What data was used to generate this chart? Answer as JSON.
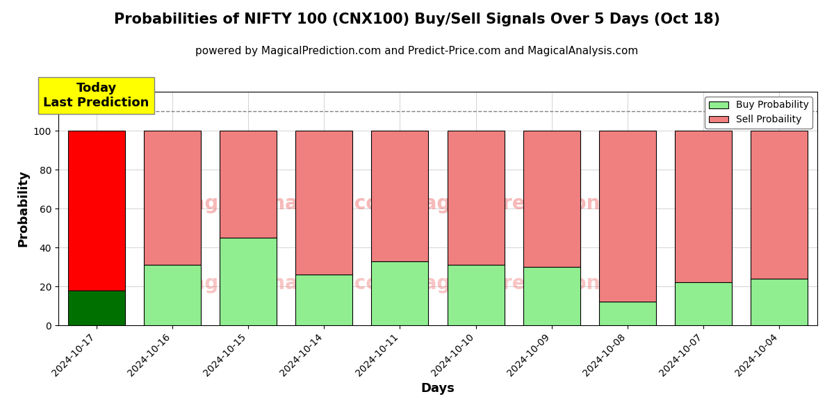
{
  "title": "Probabilities of NIFTY 100 (CNX100) Buy/Sell Signals Over 5 Days (Oct 18)",
  "subtitle": "powered by MagicalPrediction.com and Predict-Price.com and MagicalAnalysis.com",
  "xlabel": "Days",
  "ylabel": "Probability",
  "categories": [
    "2024-10-17",
    "2024-10-16",
    "2024-10-15",
    "2024-10-14",
    "2024-10-11",
    "2024-10-10",
    "2024-10-09",
    "2024-10-08",
    "2024-10-07",
    "2024-10-04"
  ],
  "buy_values": [
    18,
    31,
    45,
    26,
    33,
    31,
    30,
    12,
    22,
    24
  ],
  "sell_values": [
    82,
    69,
    55,
    74,
    67,
    69,
    70,
    88,
    78,
    76
  ],
  "today_buy_color": "#007000",
  "today_sell_color": "#ff0000",
  "buy_color": "#90ee90",
  "sell_color": "#f08080",
  "today_label_bg": "#ffff00",
  "today_label_text": "Today\nLast Prediction",
  "dashed_line_y": 110,
  "ylim": [
    0,
    120
  ],
  "yticks": [
    0,
    20,
    40,
    60,
    80,
    100
  ],
  "legend_buy_label": "Buy Probability",
  "legend_sell_label": "Sell Probaility",
  "bar_edge_color": "#000000",
  "bar_linewidth": 0.8,
  "title_fontsize": 15,
  "subtitle_fontsize": 11,
  "axis_label_fontsize": 13,
  "tick_fontsize": 10,
  "bar_width": 0.75
}
